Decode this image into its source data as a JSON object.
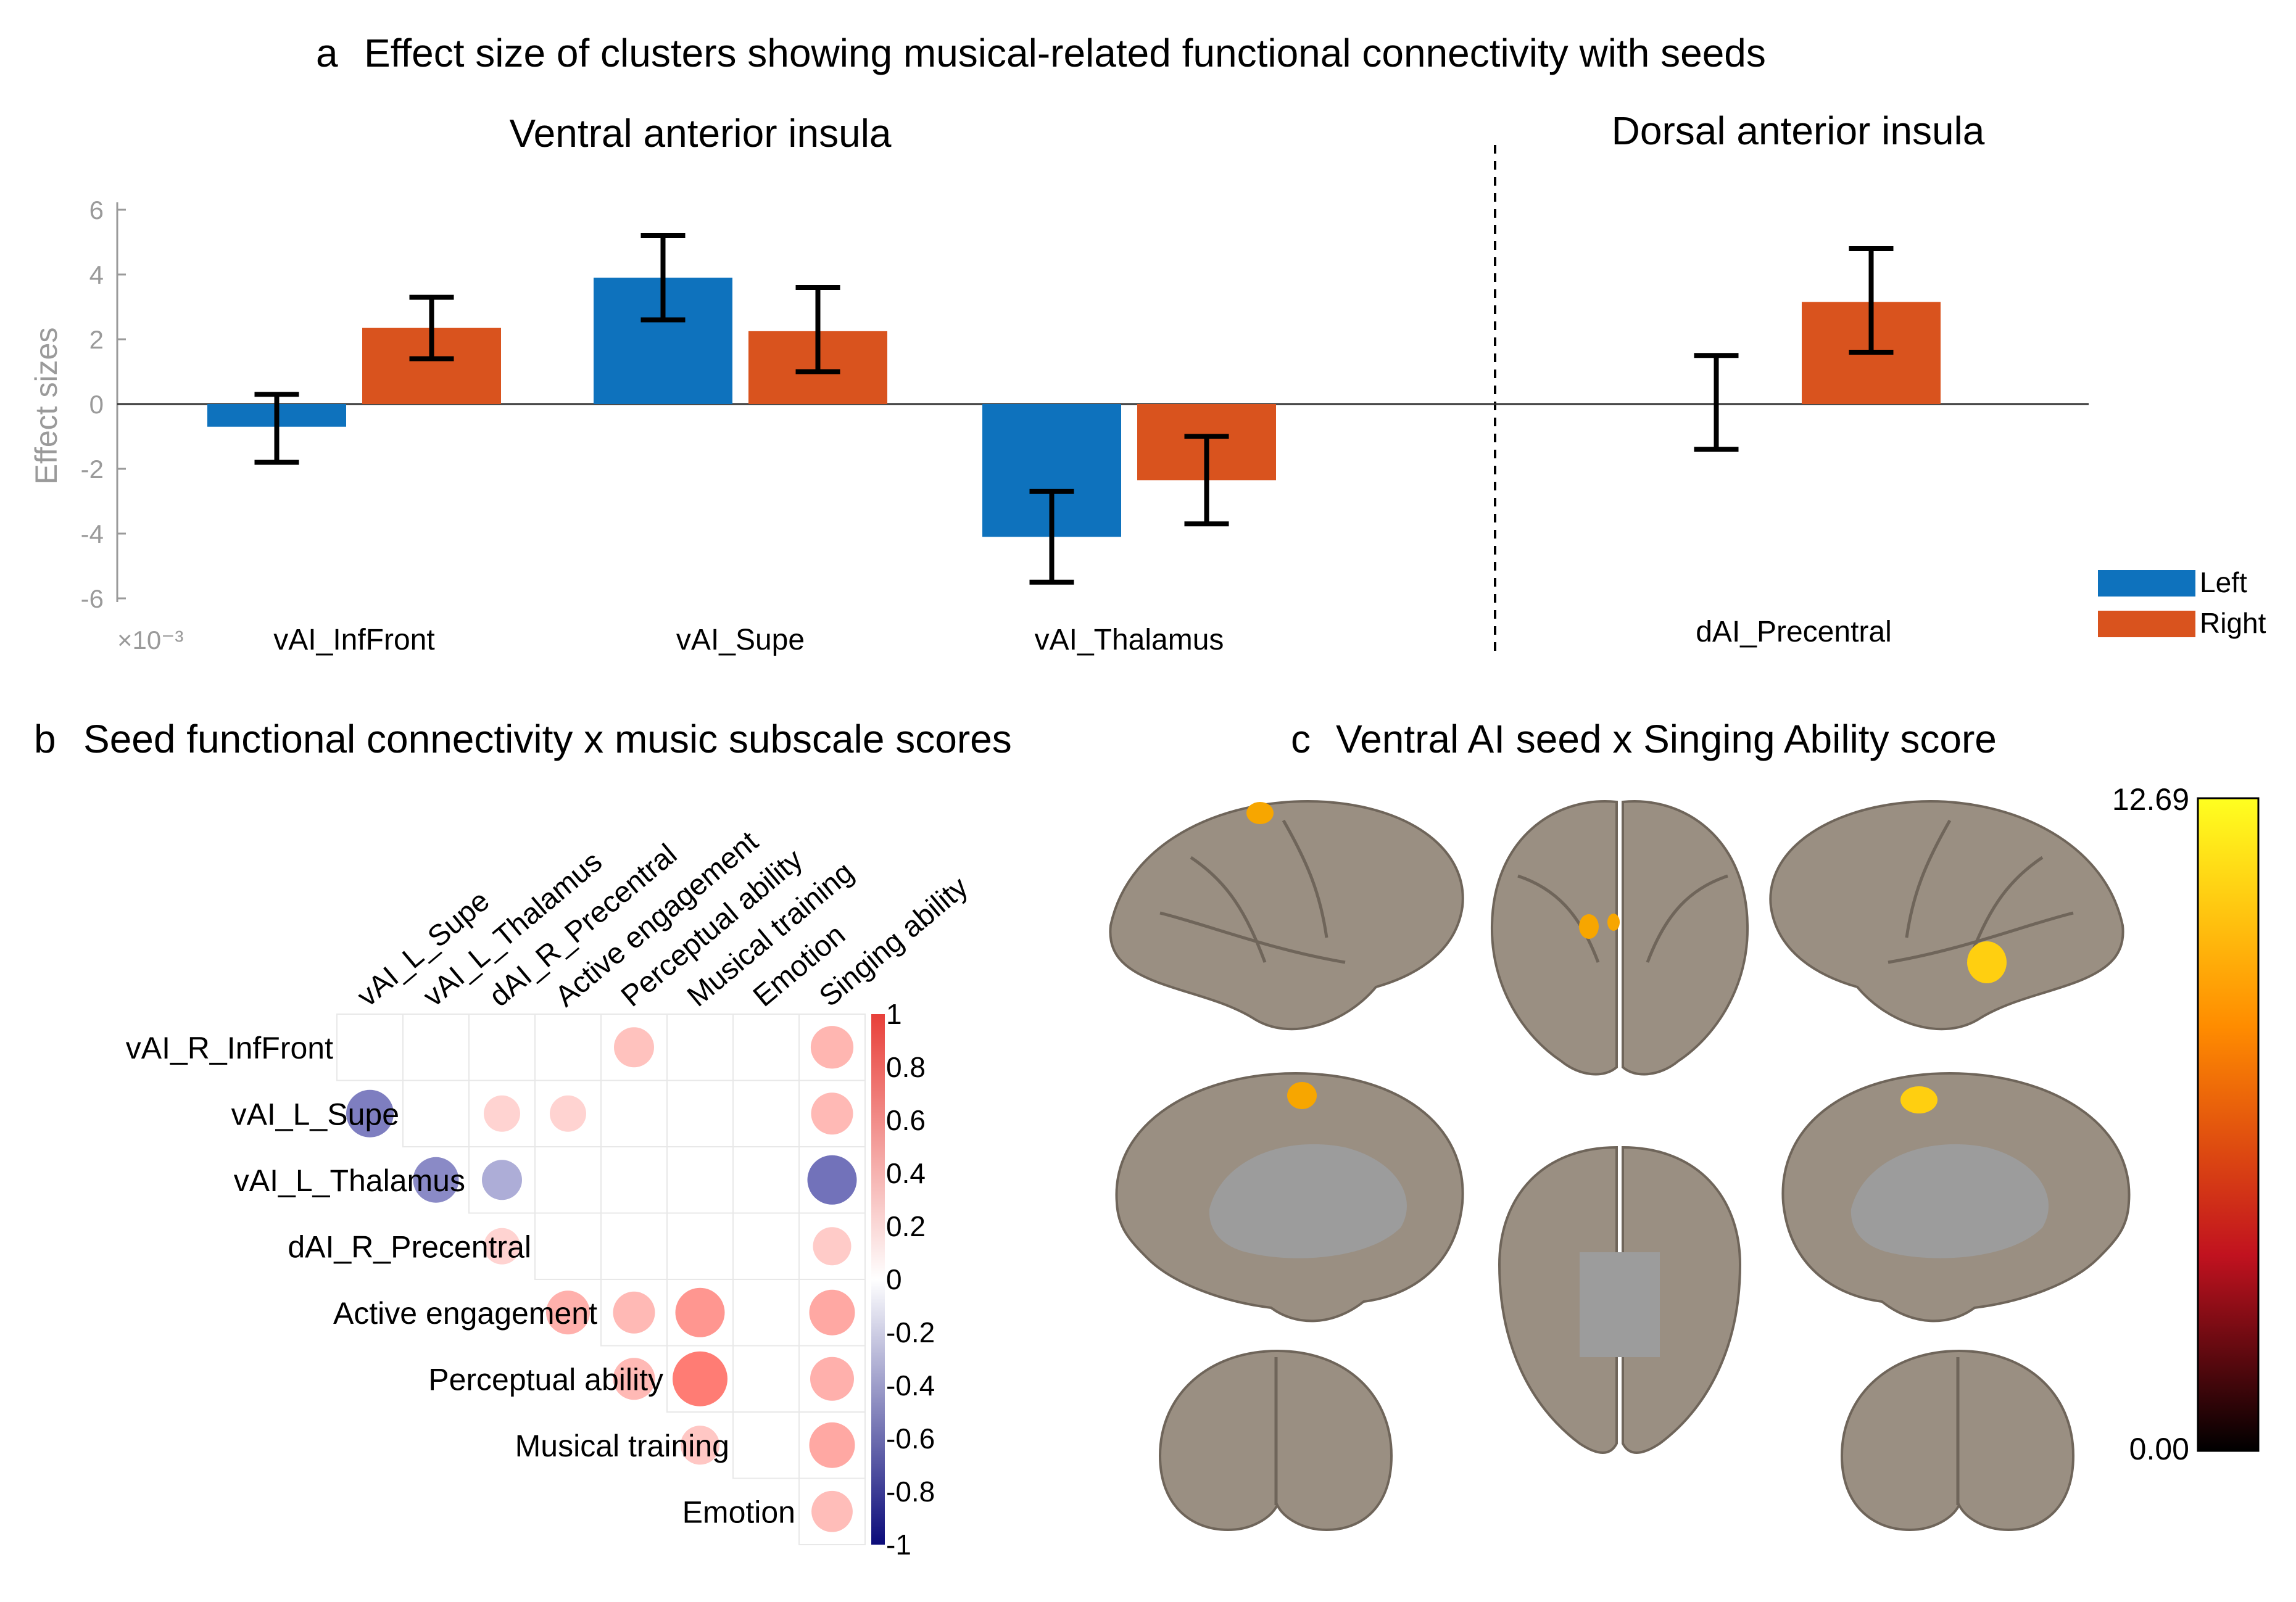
{
  "panel_a": {
    "label": "a",
    "title": "Effect size of clusters showing musical-related functional connectivity with seeds",
    "group_ventral": "Ventral anterior insula",
    "group_dorsal": "Dorsal anterior insula",
    "ylabel": "Effect sizes",
    "exponent": "×10⁻³"
  },
  "panel_b": {
    "label": "b",
    "title": "Seed functional connectivity x music subscale scores"
  },
  "panel_c": {
    "label": "c",
    "title": "Ventral AI seed x Singing Ability score",
    "cbar_max": "12.69",
    "cbar_min": "0.00",
    "colors": {
      "dark": "#000000",
      "red": "#c1121f",
      "orange": "#ff8c00",
      "yellow": "#ffff20",
      "brain": "#9a8f82",
      "medial": "#9c9c9c",
      "activation": "#f7a600"
    }
  },
  "chart_data": [
    {
      "type": "bar",
      "title": "Effect size of clusters showing musical-related functional connectivity with seeds",
      "ylabel": "Effect sizes",
      "yscale_note": "×10⁻³",
      "ylim": [
        -6,
        6
      ],
      "yticks": [
        -6,
        -4,
        -2,
        0,
        2,
        4,
        6
      ],
      "categories": [
        "vAI_InfFront",
        "vAI_Supe",
        "vAI_Thalamus",
        "dAI_Precentral"
      ],
      "series": [
        {
          "name": "Left",
          "color": "#0e72bd",
          "values": [
            -0.7,
            3.9,
            -4.1,
            0.1
          ],
          "err_low": [
            -1.8,
            2.6,
            -5.5,
            -1.4
          ],
          "err_high": [
            0.3,
            5.2,
            -2.7,
            1.5
          ]
        },
        {
          "name": "Right",
          "color": "#d9531e",
          "values": [
            2.35,
            2.25,
            -2.35,
            3.15
          ],
          "err_low": [
            1.4,
            1.0,
            -3.7,
            1.6
          ],
          "err_high": [
            3.3,
            3.6,
            -1.0,
            4.8
          ]
        }
      ],
      "legend": [
        "Left",
        "Right"
      ],
      "legend_position": "bottom-right"
    },
    {
      "type": "heatmap",
      "title": "Seed functional connectivity x music subscale scores",
      "columns": [
        "vAI_L_Supe",
        "vAI_L_Thalamus",
        "dAI_R_Precentral",
        "Active engagement",
        "Perceptual ability",
        "Musical training",
        "Emotion",
        "Singing ability"
      ],
      "rows": [
        "vAI_R_InfFront",
        "vAI_L_Supe",
        "vAI_L_Thalamus",
        "dAI_R_Precentral",
        "Active engagement",
        "Perceptual ability",
        "Musical training",
        "Emotion"
      ],
      "values": [
        [
          null,
          null,
          null,
          null,
          0.35,
          null,
          null,
          0.42
        ],
        [
          -0.55,
          null,
          0.25,
          0.25,
          null,
          null,
          null,
          0.4
        ],
        [
          null,
          -0.5,
          -0.35,
          null,
          null,
          null,
          null,
          -0.6
        ],
        [
          null,
          null,
          0.25,
          null,
          null,
          null,
          null,
          0.3
        ],
        [
          null,
          null,
          null,
          0.45,
          0.4,
          0.6,
          null,
          0.5
        ],
        [
          null,
          null,
          null,
          null,
          0.4,
          0.75,
          null,
          0.45
        ],
        [
          null,
          null,
          null,
          null,
          null,
          0.32,
          null,
          0.5
        ],
        [
          null,
          null,
          null,
          null,
          null,
          null,
          null,
          0.38
        ]
      ],
      "colorbar_ticks": [
        "1",
        "0.8",
        "0.6",
        "0.4",
        "0.2",
        "0",
        "-0.2",
        "-0.4",
        "-0.6",
        "-0.8",
        "-1"
      ],
      "colorbar_range": [
        -1,
        1
      ]
    }
  ]
}
